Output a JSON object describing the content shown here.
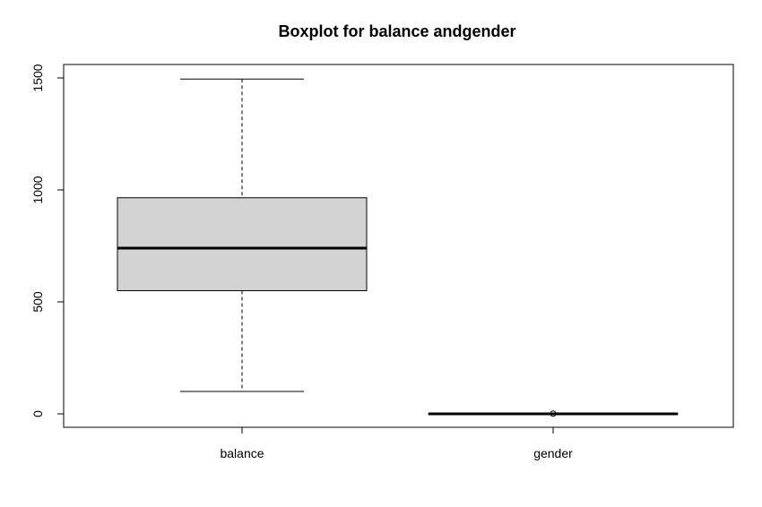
{
  "chart_data": {
    "type": "boxplot",
    "title": "Boxplot for balance andgender",
    "xlabel": "",
    "ylabel": "",
    "ylim": [
      -60,
      1560
    ],
    "yticks": [
      0,
      500,
      1000,
      1500
    ],
    "ytick_labels": [
      "0",
      "500",
      "1000",
      "1500"
    ],
    "grid": false,
    "legend": "none",
    "box_fill": "#d3d3d3",
    "categories": [
      "balance",
      "gender"
    ],
    "boxes": [
      {
        "category": "balance",
        "min": 100,
        "q1": 550,
        "median": 740,
        "q3": 965,
        "max": 1495,
        "outliers": []
      },
      {
        "category": "gender",
        "min": 0,
        "q1": 0,
        "median": 0,
        "q3": 0,
        "max": 0,
        "outliers": [
          1
        ]
      }
    ]
  }
}
